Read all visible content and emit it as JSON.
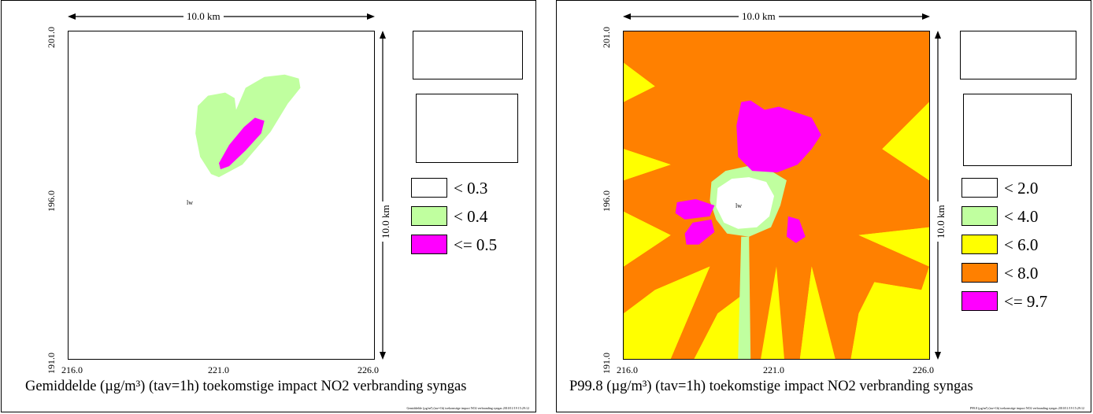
{
  "panels": [
    {
      "id": "left",
      "scale_h": "10.0 km",
      "scale_v": "10.0 km",
      "y_ticks": [
        "201.0",
        "196.0",
        "191.0"
      ],
      "x_ticks": [
        "216.0",
        "221.0",
        "226.0"
      ],
      "source_marker": "lw",
      "title": "Gemiddelde (µg/m³) (tav=1h) toekomstige impact NO2 verbranding syngas",
      "footer": "Gemiddelde (µg/m³) (tav=1h) toekomstige impact NO2 verbranding syngas 2010/11/19 15:29:12",
      "legend": [
        {
          "label": "<   0.3",
          "color": "#ffffff"
        },
        {
          "label": "<   0.4",
          "color": "#c0ff9f"
        },
        {
          "label": "<= 0.5",
          "color": "#ff00ff"
        }
      ]
    },
    {
      "id": "right",
      "scale_h": "10.0 km",
      "scale_v": "10.0 km",
      "y_ticks": [
        "201.0",
        "196.0",
        "191.0"
      ],
      "x_ticks": [
        "216.0",
        "221.0",
        "226.0"
      ],
      "source_marker": "lw",
      "title": "P99.8 (µg/m³) (tav=1h) toekomstige impact NO2 verbranding syngas",
      "footer": "P99.8 (µg/m³) (tav=1h) toekomstige impact NO2 verbranding syngas 2010/11/19 15:29:12",
      "legend": [
        {
          "label": "<   2.0",
          "color": "#ffffff"
        },
        {
          "label": "<   4.0",
          "color": "#c0ff9f"
        },
        {
          "label": "<   6.0",
          "color": "#ffff00"
        },
        {
          "label": "<   8.0",
          "color": "#ff8000"
        },
        {
          "label": "<= 9.7",
          "color": "#ff00ff"
        }
      ]
    }
  ],
  "colors": {
    "white": "#ffffff",
    "light_green": "#c0ff9f",
    "yellow": "#ffff00",
    "orange": "#ff8000",
    "magenta": "#ff00ff"
  }
}
